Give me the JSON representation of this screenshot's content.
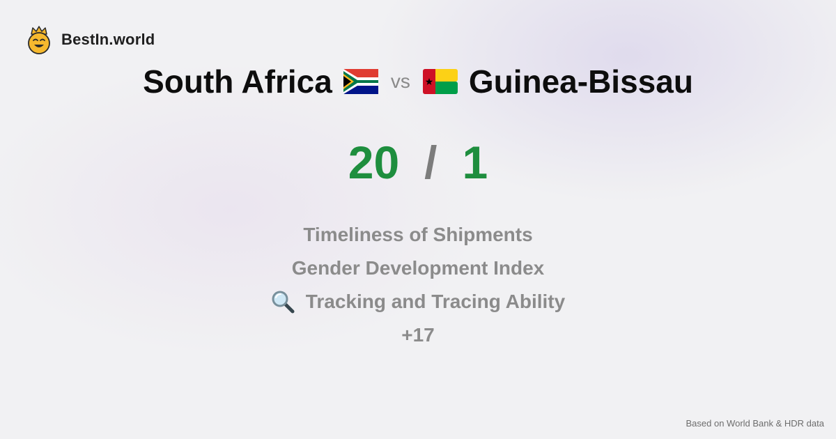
{
  "brand": {
    "name": "BestIn.world",
    "logo_icon": "smiling-crown-face-icon"
  },
  "title": {
    "left_country": "South Africa",
    "left_flag": "south-africa-flag-icon",
    "vs": "vs",
    "right_country": "Guinea-Bissau",
    "right_flag": "guinea-bissau-flag-icon"
  },
  "score": {
    "left": "20",
    "separator": "/",
    "right": "1"
  },
  "metrics": [
    {
      "label": "Timeliness of Shipments"
    },
    {
      "label": "Gender Development Index"
    },
    {
      "label": "Tracking and Tracing Ability",
      "icon": "magnifying-glass-icon"
    }
  ],
  "more": "+17",
  "footer": "Based on World Bank & HDR data",
  "colors": {
    "score_green": "#1e8e3e",
    "muted_gray": "#8b8b8b",
    "title_black": "#0d0d0d"
  }
}
